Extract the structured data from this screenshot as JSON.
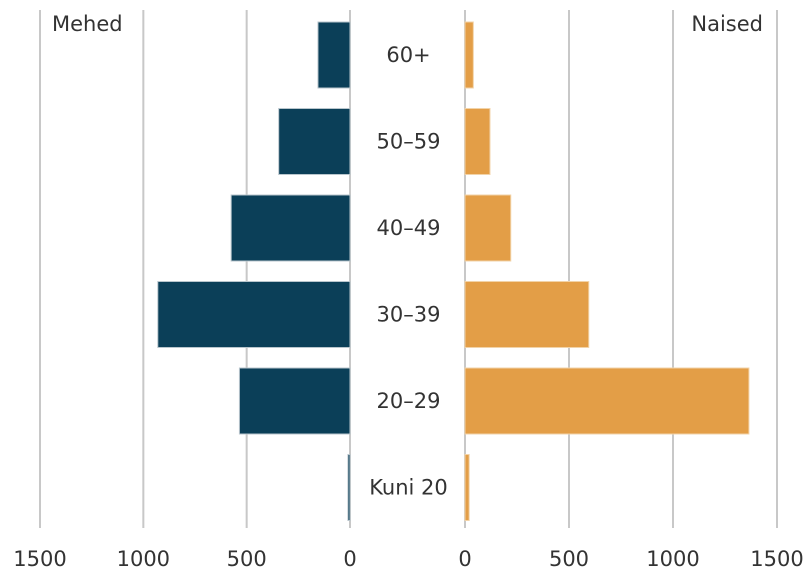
{
  "chart_data": {
    "type": "bar",
    "subtype": "population-pyramid",
    "categories": [
      "60+",
      "50–59",
      "40–49",
      "30–39",
      "20–29",
      "Kuni 20"
    ],
    "series": [
      {
        "name": "Mehed",
        "values": [
          155,
          345,
          575,
          930,
          535,
          10
        ],
        "color": "#0b3f58"
      },
      {
        "name": "Naised",
        "values": [
          40,
          120,
          220,
          595,
          1365,
          20
        ],
        "color": "#e39e47"
      }
    ],
    "xlim": [
      0,
      1500
    ],
    "xticks": [
      1500,
      1000,
      500,
      0
    ],
    "xticks_right": [
      0,
      500,
      1000,
      1500
    ],
    "grid": true,
    "legend": "top"
  }
}
